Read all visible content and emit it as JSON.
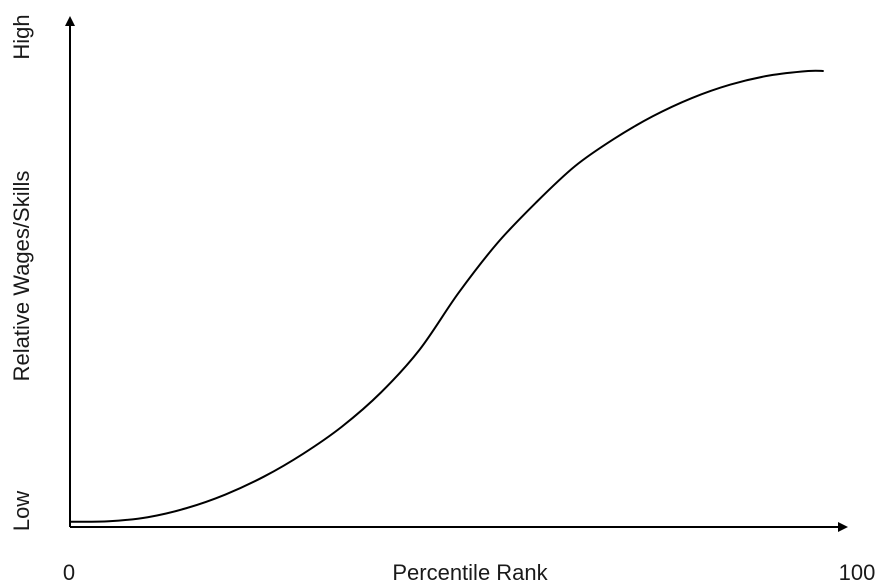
{
  "chart_data": {
    "type": "line",
    "title": "",
    "xlabel": "Percentile Rank",
    "ylabel": "Relative Wages/Skills",
    "x_ticks": [
      "0",
      "100"
    ],
    "y_ticks": [
      "Low",
      "High"
    ],
    "xlim": [
      0,
      100
    ],
    "ylim": [
      0,
      100
    ],
    "grid": false,
    "legend": "none",
    "colors": {
      "line": "#000000",
      "axis": "#000000"
    },
    "series": [
      {
        "x": [
          0,
          5,
          10,
          15,
          20,
          25,
          30,
          35,
          40,
          45,
          50,
          55,
          60,
          65,
          70,
          75,
          80,
          85,
          90,
          95,
          97
        ],
        "y": [
          0.5,
          0.6,
          1.5,
          3.5,
          6.5,
          10.5,
          15.5,
          21.5,
          29,
          38.5,
          51,
          62,
          71,
          79,
          85,
          90,
          94,
          97,
          99,
          100,
          100
        ]
      }
    ]
  }
}
